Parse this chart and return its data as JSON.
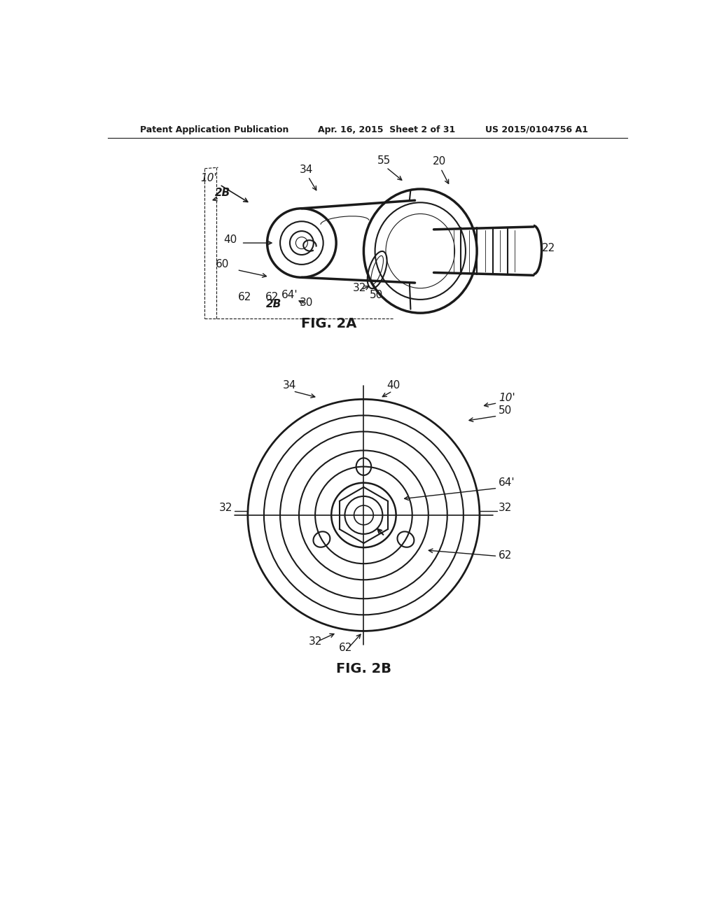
{
  "bg_color": "#ffffff",
  "header_left": "Patent Application Publication",
  "header_center": "Apr. 16, 2015  Sheet 2 of 31",
  "header_right": "US 2015/0104756 A1",
  "fig2a_label": "FIG. 2A",
  "fig2b_label": "FIG. 2B",
  "line_color": "#1a1a1a",
  "line_width": 1.5,
  "thin_line": 0.8,
  "thick_line": 2.5
}
